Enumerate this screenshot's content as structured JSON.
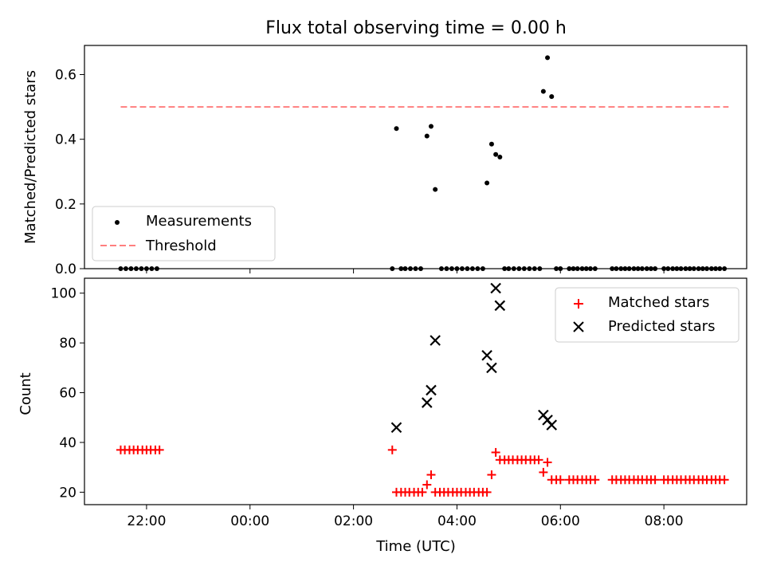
{
  "figure": {
    "title": "Flux total observing time = 0.00 h",
    "xlabel": "Time (UTC)",
    "x_ticks": [
      "22:00",
      "00:00",
      "02:00",
      "04:00",
      "06:00",
      "08:00"
    ]
  },
  "chart_data": [
    {
      "type": "scatter",
      "ylabel": "Matched/Predicted stars",
      "x_unit": "hours UTC, continuing past midnight (24 = 00:00 next day)",
      "xlim": [
        20.8,
        33.6
      ],
      "ylim": [
        0.0,
        0.69
      ],
      "y_ticks": [
        "0.0",
        "0.2",
        "0.4",
        "0.6"
      ],
      "legend_position": "lower-left",
      "series": [
        {
          "name": "Measurements",
          "marker": "dot",
          "color": "#000000",
          "points": [
            [
              21.5,
              0
            ],
            [
              21.6,
              0
            ],
            [
              21.7,
              0
            ],
            [
              21.8,
              0
            ],
            [
              21.9,
              0
            ],
            [
              22.0,
              0
            ],
            [
              22.1,
              0
            ],
            [
              22.2,
              0
            ],
            [
              26.75,
              0
            ],
            [
              26.83,
              0.433
            ],
            [
              26.92,
              0
            ],
            [
              27.0,
              0
            ],
            [
              27.1,
              0
            ],
            [
              27.2,
              0
            ],
            [
              27.3,
              0
            ],
            [
              27.42,
              0.41
            ],
            [
              27.5,
              0.44
            ],
            [
              27.58,
              0.245
            ],
            [
              27.7,
              0
            ],
            [
              27.8,
              0
            ],
            [
              27.9,
              0
            ],
            [
              28.0,
              0
            ],
            [
              28.1,
              0
            ],
            [
              28.2,
              0
            ],
            [
              28.3,
              0
            ],
            [
              28.4,
              0
            ],
            [
              28.5,
              0
            ],
            [
              28.58,
              0.265
            ],
            [
              28.67,
              0.385
            ],
            [
              28.75,
              0.353
            ],
            [
              28.83,
              0.345
            ],
            [
              28.92,
              0
            ],
            [
              29.0,
              0
            ],
            [
              29.1,
              0
            ],
            [
              29.2,
              0
            ],
            [
              29.3,
              0
            ],
            [
              29.4,
              0
            ],
            [
              29.5,
              0
            ],
            [
              29.6,
              0
            ],
            [
              29.67,
              0.548
            ],
            [
              29.75,
              0.652
            ],
            [
              29.83,
              0.532
            ],
            [
              29.92,
              0
            ],
            [
              30.0,
              0
            ],
            [
              30.17,
              0
            ],
            [
              30.25,
              0
            ],
            [
              30.33,
              0
            ],
            [
              30.42,
              0
            ],
            [
              30.5,
              0
            ],
            [
              30.58,
              0
            ],
            [
              30.67,
              0
            ],
            [
              31.0,
              0
            ],
            [
              31.08,
              0
            ],
            [
              31.17,
              0
            ],
            [
              31.25,
              0
            ],
            [
              31.33,
              0
            ],
            [
              31.42,
              0
            ],
            [
              31.5,
              0
            ],
            [
              31.58,
              0
            ],
            [
              31.67,
              0
            ],
            [
              31.75,
              0
            ],
            [
              31.83,
              0
            ],
            [
              32.0,
              0
            ],
            [
              32.08,
              0
            ],
            [
              32.17,
              0
            ],
            [
              32.25,
              0
            ],
            [
              32.33,
              0
            ],
            [
              32.42,
              0
            ],
            [
              32.5,
              0
            ],
            [
              32.58,
              0
            ],
            [
              32.67,
              0
            ],
            [
              32.75,
              0
            ],
            [
              32.83,
              0
            ],
            [
              32.92,
              0
            ],
            [
              33.0,
              0
            ],
            [
              33.08,
              0
            ],
            [
              33.17,
              0
            ]
          ]
        },
        {
          "name": "Threshold",
          "marker": "dashed-line",
          "color": "#ff7f7f",
          "x": [
            21.5,
            33.25
          ],
          "y": [
            0.5,
            0.5
          ]
        }
      ]
    },
    {
      "type": "scatter",
      "ylabel": "Count",
      "x_unit": "hours UTC, continuing past midnight (24 = 00:00 next day)",
      "xlim": [
        20.8,
        33.6
      ],
      "ylim": [
        15,
        106
      ],
      "y_ticks": [
        "20",
        "40",
        "60",
        "80",
        "100"
      ],
      "legend_position": "top-right",
      "series": [
        {
          "name": "Matched stars",
          "marker": "plus",
          "color": "#ff0000",
          "points": [
            [
              21.5,
              37
            ],
            [
              21.58,
              37
            ],
            [
              21.67,
              37
            ],
            [
              21.75,
              37
            ],
            [
              21.83,
              37
            ],
            [
              21.92,
              37
            ],
            [
              22.0,
              37
            ],
            [
              22.08,
              37
            ],
            [
              22.17,
              37
            ],
            [
              22.25,
              37
            ],
            [
              26.75,
              37
            ],
            [
              26.83,
              20
            ],
            [
              26.92,
              20
            ],
            [
              27.0,
              20
            ],
            [
              27.08,
              20
            ],
            [
              27.17,
              20
            ],
            [
              27.25,
              20
            ],
            [
              27.33,
              20
            ],
            [
              27.42,
              23
            ],
            [
              27.5,
              27
            ],
            [
              27.58,
              20
            ],
            [
              27.67,
              20
            ],
            [
              27.75,
              20
            ],
            [
              27.83,
              20
            ],
            [
              27.92,
              20
            ],
            [
              28.0,
              20
            ],
            [
              28.08,
              20
            ],
            [
              28.17,
              20
            ],
            [
              28.25,
              20
            ],
            [
              28.33,
              20
            ],
            [
              28.42,
              20
            ],
            [
              28.5,
              20
            ],
            [
              28.58,
              20
            ],
            [
              28.67,
              27
            ],
            [
              28.75,
              36
            ],
            [
              28.83,
              33
            ],
            [
              28.92,
              33
            ],
            [
              29.0,
              33
            ],
            [
              29.08,
              33
            ],
            [
              29.17,
              33
            ],
            [
              29.25,
              33
            ],
            [
              29.33,
              33
            ],
            [
              29.42,
              33
            ],
            [
              29.5,
              33
            ],
            [
              29.58,
              33
            ],
            [
              29.67,
              28
            ],
            [
              29.75,
              32
            ],
            [
              29.83,
              25
            ],
            [
              29.92,
              25
            ],
            [
              30.0,
              25
            ],
            [
              30.17,
              25
            ],
            [
              30.25,
              25
            ],
            [
              30.33,
              25
            ],
            [
              30.42,
              25
            ],
            [
              30.5,
              25
            ],
            [
              30.58,
              25
            ],
            [
              30.67,
              25
            ],
            [
              31.0,
              25
            ],
            [
              31.08,
              25
            ],
            [
              31.17,
              25
            ],
            [
              31.25,
              25
            ],
            [
              31.33,
              25
            ],
            [
              31.42,
              25
            ],
            [
              31.5,
              25
            ],
            [
              31.58,
              25
            ],
            [
              31.67,
              25
            ],
            [
              31.75,
              25
            ],
            [
              31.83,
              25
            ],
            [
              32.0,
              25
            ],
            [
              32.08,
              25
            ],
            [
              32.17,
              25
            ],
            [
              32.25,
              25
            ],
            [
              32.33,
              25
            ],
            [
              32.42,
              25
            ],
            [
              32.5,
              25
            ],
            [
              32.58,
              25
            ],
            [
              32.67,
              25
            ],
            [
              32.75,
              25
            ],
            [
              32.83,
              25
            ],
            [
              32.92,
              25
            ],
            [
              33.0,
              25
            ],
            [
              33.08,
              25
            ],
            [
              33.17,
              25
            ]
          ]
        },
        {
          "name": "Predicted stars",
          "marker": "x",
          "color": "#000000",
          "points": [
            [
              26.83,
              46
            ],
            [
              27.42,
              56
            ],
            [
              27.5,
              61
            ],
            [
              27.58,
              81
            ],
            [
              28.58,
              75
            ],
            [
              28.67,
              70
            ],
            [
              28.75,
              102
            ],
            [
              28.83,
              95
            ],
            [
              29.67,
              51
            ],
            [
              29.75,
              49
            ],
            [
              29.83,
              47
            ]
          ]
        }
      ]
    }
  ]
}
